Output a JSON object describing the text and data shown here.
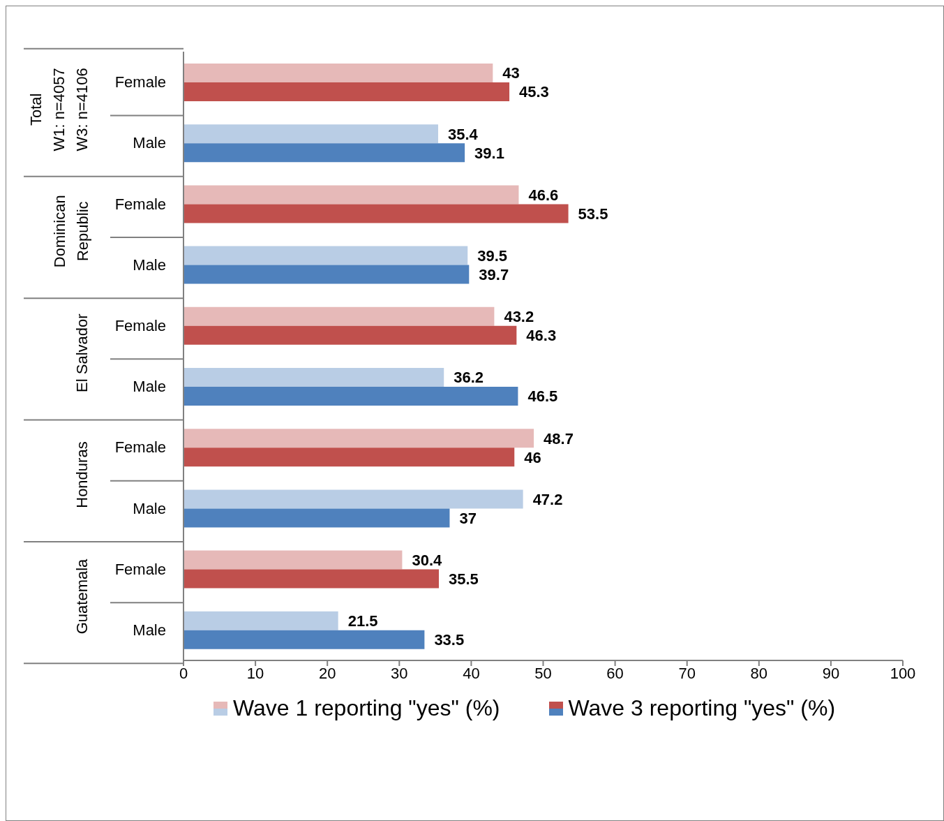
{
  "chart_data": {
    "type": "bar",
    "orientation": "horizontal",
    "categories": [
      "Female",
      "Male",
      "Female",
      "Male",
      "Female",
      "Male",
      "Female",
      "Male",
      "Female",
      "Male"
    ],
    "annotations": [
      "Total\nW1: n=4057\nW3: n=4106",
      "Dominican\nRepublic",
      "El Salvador",
      "Honduras",
      "Guatemala"
    ],
    "series": [
      {
        "name": "Wave 1 reporting \"yes\" (%)",
        "colors": [
          "#e6b9b8",
          "#b9cde5",
          "#e6b9b8",
          "#b9cde5",
          "#e6b9b8",
          "#b9cde5",
          "#e6b9b8",
          "#b9cde5",
          "#e6b9b8",
          "#b9cde5"
        ],
        "values": [
          43,
          35.4,
          46.6,
          39.5,
          43.2,
          36.2,
          48.7,
          47.2,
          30.4,
          21.5
        ]
      },
      {
        "name": "Wave 3 reporting \"yes\" (%)",
        "colors": [
          "#c0504d",
          "#4f81bd",
          "#c0504d",
          "#4f81bd",
          "#c0504d",
          "#4f81bd",
          "#c0504d",
          "#4f81bd",
          "#c0504d",
          "#4f81bd"
        ],
        "values": [
          45.3,
          39.1,
          53.5,
          39.7,
          46.3,
          46.5,
          46,
          37,
          35.5,
          33.5
        ]
      }
    ],
    "xlim": [
      0,
      100
    ],
    "xticks": [
      0,
      10,
      20,
      30,
      40,
      50,
      60,
      70,
      80,
      90,
      100
    ],
    "data_labels": true,
    "legend": "bottom",
    "grid": false
  }
}
